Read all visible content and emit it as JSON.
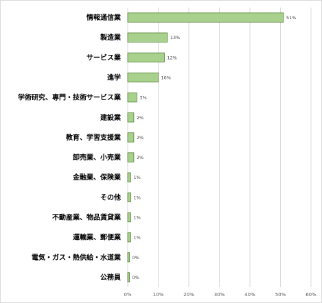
{
  "chart_data": {
    "type": "bar",
    "orientation": "horizontal",
    "categories": [
      "情報通信業",
      "製造業",
      "サービス業",
      "進学",
      "学術研究、専門・技術サービス業",
      "建設業",
      "教育、学習支援業",
      "卸売業、小売業",
      "金融業、保険業",
      "その他",
      "不動産業、物品賃貸業",
      "運輸業、郵便業",
      "電気・ガス・熱供給・水道業",
      "公務員"
    ],
    "values": [
      51,
      13,
      12,
      10,
      3,
      2,
      2,
      2,
      1,
      1,
      1,
      1,
      0,
      0
    ],
    "data_labels": [
      "51%",
      "13%",
      "12%",
      "10%",
      "3%",
      "2%",
      "2%",
      "2%",
      "1%",
      "1%",
      "1%",
      "1%",
      "0%",
      "0%"
    ],
    "xticks": [
      "0%",
      "10%",
      "20%",
      "30%",
      "40%",
      "50%",
      "60%"
    ],
    "xlim": [
      0,
      60
    ],
    "grid": true,
    "bar_color": "#a9d18e",
    "bar_edge_color": "#548235"
  }
}
